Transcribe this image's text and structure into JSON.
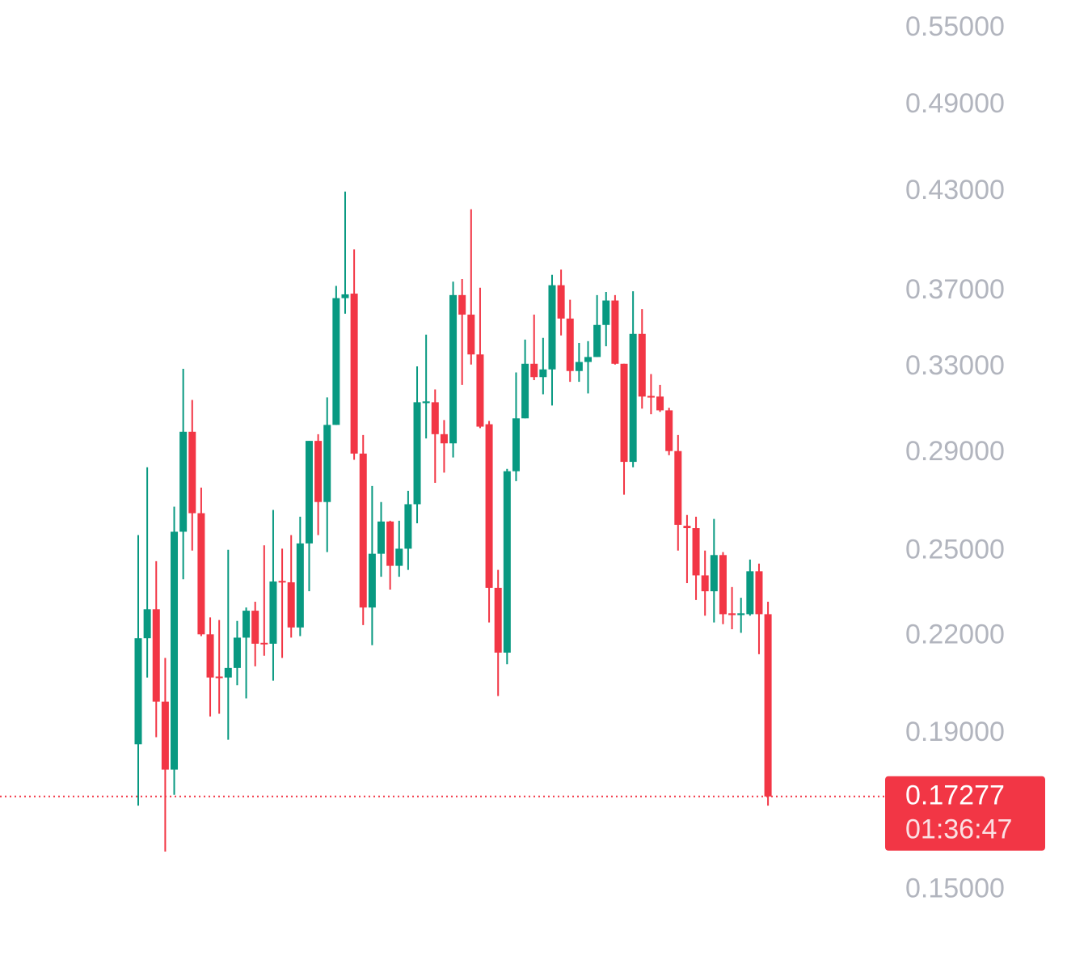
{
  "chart_data": {
    "type": "candlestick",
    "open": [
      0.1869,
      0.2193,
      0.2291,
      0.1993,
      0.1799,
      0.2575,
      0.2994,
      0.2648,
      0.2206,
      0.207,
      0.2067,
      0.2097,
      0.2195,
      0.2286,
      0.2178,
      0.2175,
      0.2391,
      0.2386,
      0.2229,
      0.253,
      0.2953,
      0.2693,
      0.3025,
      0.3662,
      0.3687,
      0.2897,
      0.2297,
      0.2491,
      0.2615,
      0.2446,
      0.251,
      0.2684,
      0.3126,
      0.313,
      0.2983,
      0.2942,
      0.3679,
      0.3572,
      0.3364,
      0.3028,
      0.2366,
      0.2146,
      0.2821,
      0.3055,
      0.3317,
      0.3251,
      0.3289,
      0.3734,
      0.3551,
      0.3281,
      0.3326,
      0.3351,
      0.3517,
      0.3649,
      0.3317,
      0.2861,
      0.347,
      0.316,
      0.3157,
      0.3092,
      0.2908,
      0.2598,
      0.2589,
      0.2411,
      0.2354,
      0.2486,
      0.2277,
      0.2271,
      0.2274,
      0.2426,
      0.2274
    ],
    "high": [
      0.2562,
      0.2838,
      0.2463,
      0.2129,
      0.2674,
      0.3292,
      0.3141,
      0.2752,
      0.2263,
      0.2254,
      0.2506,
      0.2251,
      0.2297,
      0.2317,
      0.2523,
      0.2661,
      0.251,
      0.2562,
      0.2634,
      0.2953,
      0.2983,
      0.3153,
      0.373,
      0.43,
      0.3941,
      0.2979,
      0.2759,
      0.2693,
      0.2618,
      0.2618,
      0.2739,
      0.3304,
      0.3466,
      0.3191,
      0.3047,
      0.3754,
      0.3769,
      0.4187,
      0.372,
      0.3043,
      0.2431,
      0.2831,
      0.3274,
      0.344,
      0.3572,
      0.3449,
      0.3793,
      0.3823,
      0.3653,
      0.3423,
      0.3432,
      0.3679,
      0.3696,
      0.3679,
      0.3317,
      0.37,
      0.3602,
      0.3266,
      0.3213,
      0.3104,
      0.2979,
      0.2641,
      0.2634,
      0.2503,
      0.2625,
      0.2497,
      0.2369,
      0.2331,
      0.2469,
      0.2454,
      0.2317
    ],
    "low": [
      0.1704,
      0.2067,
      0.1889,
      0.159,
      0.1732,
      0.2397,
      0.2503,
      0.22,
      0.1949,
      0.1957,
      0.1882,
      0.2043,
      0.2003,
      0.2102,
      0.2136,
      0.2057,
      0.2129,
      0.2195,
      0.22,
      0.2354,
      0.2562,
      0.2497,
      0.3025,
      0.3577,
      0.287,
      0.2237,
      0.217,
      0.2406,
      0.236,
      0.2406,
      0.2431,
      0.2608,
      0.2964,
      0.2772,
      0.2815,
      0.288,
      0.3213,
      0.3313,
      0.301,
      0.2246,
      0.201,
      0.2109,
      0.2779,
      0.3055,
      0.3236,
      0.3168,
      0.3115,
      0.3462,
      0.3228,
      0.3228,
      0.3172,
      0.3351,
      0.3406,
      0.3313,
      0.2723,
      0.2838,
      0.31,
      0.3074,
      0.3085,
      0.289,
      0.2503,
      0.2383,
      0.2323,
      0.2269,
      0.2246,
      0.224,
      0.2223,
      0.2211,
      0.2269,
      0.2141,
      0.1704
    ],
    "close": [
      0.2193,
      0.2291,
      0.1993,
      0.1799,
      0.2575,
      0.2994,
      0.2648,
      0.2206,
      0.2067,
      0.2065,
      0.2097,
      0.2195,
      0.2286,
      0.2175,
      0.2173,
      0.2389,
      0.2386,
      0.2229,
      0.253,
      0.2953,
      0.2693,
      0.3025,
      0.3662,
      0.3683,
      0.2897,
      0.2297,
      0.2491,
      0.2615,
      0.2446,
      0.251,
      0.2684,
      0.313,
      0.3134,
      0.2983,
      0.2942,
      0.3679,
      0.3572,
      0.3364,
      0.3017,
      0.2366,
      0.2146,
      0.2821,
      0.3055,
      0.3317,
      0.3251,
      0.3289,
      0.3734,
      0.3551,
      0.3281,
      0.3326,
      0.3351,
      0.3517,
      0.3649,
      0.3317,
      0.2861,
      0.347,
      0.3157,
      0.3153,
      0.3092,
      0.2908,
      0.2602,
      0.2589,
      0.2411,
      0.2354,
      0.2486,
      0.2274,
      0.2271,
      0.2277,
      0.2426,
      0.2274,
      0.17277
    ],
    "up_color": "#089981",
    "down_color": "#f23645",
    "log_scale": true,
    "ylim": [
      0.1316,
      0.574
    ],
    "yticks": [
      {
        "value": 0.55,
        "label": "0.55000"
      },
      {
        "value": 0.49,
        "label": "0.49000"
      },
      {
        "value": 0.43,
        "label": "0.43000"
      },
      {
        "value": 0.37,
        "label": "0.37000"
      },
      {
        "value": 0.33,
        "label": "0.33000"
      },
      {
        "value": 0.29,
        "label": "0.29000"
      },
      {
        "value": 0.25,
        "label": "0.25000"
      },
      {
        "value": 0.22,
        "label": "0.22000"
      },
      {
        "value": 0.19,
        "label": "0.19000"
      },
      {
        "value": 0.15,
        "label": "0.15000"
      }
    ],
    "grid": false,
    "last_price": 0.17277,
    "countdown": "01:36:47"
  }
}
